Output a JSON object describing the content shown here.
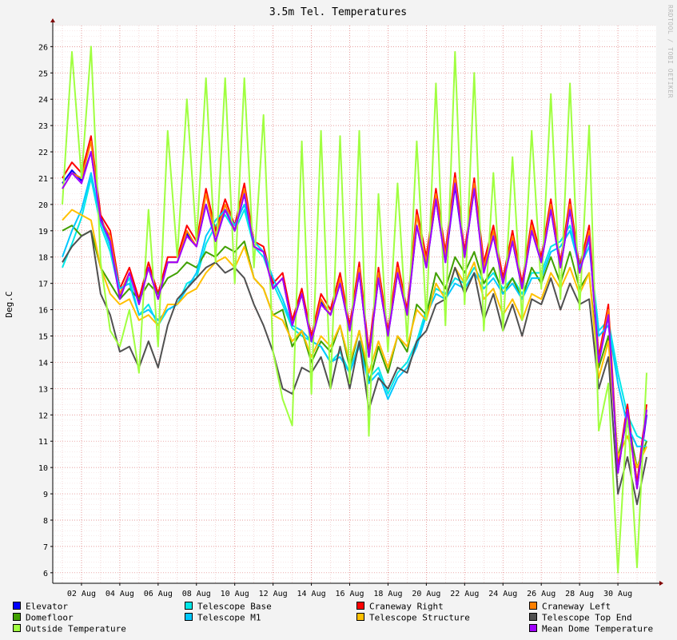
{
  "chart_data": {
    "type": "line",
    "title": "3.5m Tel. Temperatures",
    "ylabel": "Deg.C",
    "xlabel": "",
    "ylim": [
      5.6,
      26.8
    ],
    "yticks": [
      6,
      7,
      8,
      9,
      10,
      11,
      12,
      13,
      14,
      15,
      16,
      17,
      18,
      19,
      20,
      21,
      22,
      23,
      24,
      25,
      26
    ],
    "x_tick_labels": [
      "02 Aug",
      "04 Aug",
      "06 Aug",
      "08 Aug",
      "10 Aug",
      "12 Aug",
      "14 Aug",
      "16 Aug",
      "18 Aug",
      "20 Aug",
      "22 Aug",
      "24 Aug",
      "26 Aug",
      "28 Aug",
      "30 Aug"
    ],
    "x": [
      1.0,
      1.5,
      2.0,
      2.5,
      3.0,
      3.5,
      4.0,
      4.5,
      5.0,
      5.5,
      6.0,
      6.5,
      7.0,
      7.5,
      8.0,
      8.5,
      9.0,
      9.5,
      10.0,
      10.5,
      11.0,
      11.5,
      12.0,
      12.5,
      13.0,
      13.5,
      14.0,
      14.5,
      15.0,
      15.5,
      16.0,
      16.5,
      17.0,
      17.5,
      18.0,
      18.5,
      19.0,
      19.5,
      20.0,
      20.5,
      21.0,
      21.5,
      22.0,
      22.5,
      23.0,
      23.5,
      24.0,
      24.5,
      25.0,
      25.5,
      26.0,
      26.5,
      27.0,
      27.5,
      28.0,
      28.5,
      29.0,
      29.5,
      30.0,
      30.5,
      31.0,
      31.5
    ],
    "grid": true,
    "legend_position": "bottom",
    "series": [
      {
        "name": "Elevator",
        "color": "#0000ff",
        "values": [
          20.8,
          21.3,
          20.9,
          22.0,
          19.5,
          18.6,
          16.5,
          17.4,
          16.3,
          17.6,
          16.4,
          17.8,
          17.8,
          18.9,
          18.4,
          20.0,
          18.6,
          19.8,
          19.0,
          20.4,
          18.4,
          18.2,
          16.8,
          17.2,
          15.4,
          16.6,
          14.8,
          16.3,
          15.8,
          17.0,
          15.2,
          17.4,
          14.2,
          17.2,
          15.0,
          17.4,
          15.8,
          19.2,
          17.6,
          20.2,
          17.8,
          20.7,
          18.0,
          20.6,
          17.5,
          18.8,
          17.0,
          18.6,
          16.8,
          19.0,
          17.8,
          19.8,
          17.6,
          19.8,
          17.4,
          18.8,
          14.0,
          15.8,
          9.8,
          12.2,
          9.2,
          12.0
        ]
      },
      {
        "name": "Telescope Base",
        "color": "#00e8e8",
        "values": [
          17.6,
          18.5,
          19.5,
          21.0,
          19.2,
          18.2,
          16.6,
          17.2,
          15.8,
          16.2,
          15.4,
          16.0,
          16.2,
          17.0,
          17.2,
          18.5,
          19.2,
          19.6,
          19.0,
          19.8,
          18.4,
          18.0,
          17.0,
          16.2,
          15.3,
          15.0,
          14.8,
          14.6,
          14.0,
          14.4,
          13.6,
          14.8,
          13.4,
          13.8,
          12.8,
          13.6,
          14.0,
          14.8,
          16.0,
          16.8,
          16.6,
          17.2,
          17.0,
          17.6,
          17.0,
          17.4,
          16.8,
          17.2,
          16.6,
          17.4,
          17.4,
          18.4,
          18.6,
          19.2,
          17.8,
          18.6,
          15.2,
          15.6,
          13.6,
          12.0,
          11.2,
          11.0
        ]
      },
      {
        "name": "Craneway Right",
        "color": "#ff0000",
        "values": [
          21.0,
          21.6,
          21.2,
          22.6,
          19.6,
          19.0,
          16.8,
          17.6,
          16.4,
          17.8,
          16.6,
          18.0,
          18.0,
          19.2,
          18.6,
          20.6,
          19.0,
          20.2,
          19.2,
          20.8,
          18.6,
          18.4,
          17.0,
          17.4,
          15.6,
          16.8,
          15.0,
          16.6,
          16.0,
          17.4,
          15.4,
          17.8,
          14.4,
          17.6,
          15.2,
          17.8,
          16.0,
          19.8,
          18.0,
          20.6,
          18.2,
          21.2,
          18.2,
          21.0,
          17.8,
          19.2,
          17.2,
          19.0,
          17.0,
          19.4,
          18.0,
          20.2,
          17.8,
          20.2,
          17.6,
          19.2,
          14.2,
          16.2,
          10.0,
          12.4,
          9.4,
          12.4
        ]
      },
      {
        "name": "Craneway Left",
        "color": "#ff8000",
        "values": [
          20.6,
          21.2,
          21.0,
          22.4,
          19.4,
          18.8,
          16.6,
          17.4,
          16.2,
          17.6,
          16.4,
          17.8,
          17.8,
          19.0,
          18.4,
          20.4,
          18.8,
          20.0,
          19.0,
          20.6,
          18.4,
          18.2,
          16.8,
          17.2,
          15.4,
          16.6,
          14.8,
          16.4,
          15.8,
          17.2,
          15.2,
          17.6,
          14.2,
          17.4,
          15.0,
          17.6,
          15.8,
          19.6,
          17.8,
          20.4,
          18.0,
          21.0,
          18.0,
          20.8,
          17.6,
          19.0,
          17.0,
          18.8,
          16.8,
          19.2,
          17.8,
          20.0,
          17.6,
          20.0,
          17.4,
          19.0,
          14.0,
          16.0,
          9.8,
          12.2,
          9.2,
          12.2
        ]
      },
      {
        "name": "Domefloor",
        "color": "#40a000",
        "values": [
          19.0,
          19.2,
          18.8,
          19.0,
          17.6,
          17.0,
          16.4,
          16.8,
          16.4,
          17.0,
          16.6,
          17.2,
          17.4,
          17.8,
          17.6,
          18.2,
          18.0,
          18.4,
          18.2,
          18.6,
          17.2,
          16.8,
          15.8,
          16.0,
          14.6,
          15.2,
          14.0,
          14.8,
          14.4,
          15.4,
          13.8,
          15.2,
          13.2,
          14.6,
          13.6,
          15.0,
          14.4,
          16.2,
          15.8,
          17.4,
          16.8,
          18.0,
          17.4,
          18.2,
          17.0,
          17.6,
          16.6,
          17.2,
          16.4,
          17.6,
          17.0,
          18.0,
          17.0,
          18.2,
          16.8,
          17.4,
          13.8,
          15.0,
          10.4,
          11.8,
          10.0,
          11.0
        ]
      },
      {
        "name": "Telescope M1",
        "color": "#00c8ff",
        "values": [
          18.0,
          19.0,
          19.8,
          21.2,
          19.4,
          18.4,
          16.8,
          17.0,
          15.8,
          16.0,
          15.6,
          16.0,
          16.2,
          16.8,
          17.4,
          18.8,
          19.4,
          19.8,
          19.2,
          20.0,
          18.6,
          18.2,
          17.2,
          16.4,
          15.4,
          15.2,
          14.8,
          14.6,
          14.0,
          14.2,
          13.6,
          14.6,
          13.2,
          13.6,
          12.6,
          13.4,
          13.8,
          14.6,
          15.8,
          16.6,
          16.4,
          17.0,
          16.8,
          17.4,
          16.8,
          17.2,
          16.6,
          17.0,
          16.4,
          17.2,
          17.2,
          18.2,
          18.4,
          19.0,
          17.6,
          18.4,
          15.0,
          15.4,
          13.2,
          11.6,
          10.8,
          10.8
        ]
      },
      {
        "name": "Telescope Structure",
        "color": "#ffc000",
        "values": [
          19.4,
          19.8,
          19.6,
          19.4,
          17.6,
          16.6,
          16.2,
          16.4,
          15.6,
          15.8,
          15.4,
          16.2,
          16.2,
          16.6,
          16.8,
          17.4,
          17.8,
          18.0,
          17.6,
          18.4,
          17.2,
          16.8,
          15.8,
          15.6,
          14.8,
          15.2,
          14.2,
          15.0,
          14.6,
          15.4,
          14.0,
          15.2,
          13.6,
          14.8,
          13.8,
          15.0,
          14.6,
          16.0,
          15.6,
          17.0,
          16.4,
          17.6,
          17.0,
          17.8,
          16.4,
          16.8,
          15.8,
          16.4,
          15.6,
          16.6,
          16.4,
          17.4,
          16.8,
          17.6,
          16.6,
          17.4,
          13.4,
          14.8,
          10.4,
          11.2,
          10.0,
          10.8
        ]
      },
      {
        "name": "Telescope Top End",
        "color": "#505050",
        "values": [
          17.8,
          18.4,
          18.8,
          19.0,
          16.6,
          15.8,
          14.4,
          14.6,
          13.8,
          14.8,
          13.8,
          15.4,
          16.4,
          16.8,
          17.2,
          17.6,
          17.8,
          17.4,
          17.6,
          17.2,
          16.2,
          15.4,
          14.4,
          13.0,
          12.8,
          13.8,
          13.6,
          14.2,
          13.0,
          14.6,
          13.0,
          14.8,
          12.2,
          13.4,
          13.0,
          13.8,
          13.6,
          14.8,
          15.2,
          16.2,
          16.4,
          17.6,
          16.6,
          17.4,
          15.6,
          16.6,
          15.2,
          16.2,
          15.0,
          16.4,
          16.2,
          17.2,
          16.0,
          17.0,
          16.2,
          16.4,
          13.0,
          14.2,
          9.0,
          10.4,
          8.6,
          10.4
        ]
      },
      {
        "name": "Outside Temperature",
        "color": "#a0ff40",
        "values": [
          20.0,
          25.8,
          21.0,
          26.0,
          17.8,
          15.2,
          14.6,
          16.0,
          13.6,
          19.8,
          14.6,
          22.8,
          18.0,
          24.0,
          18.6,
          24.8,
          17.8,
          24.8,
          17.0,
          24.8,
          17.6,
          23.4,
          14.4,
          12.6,
          11.6,
          22.4,
          12.8,
          22.8,
          13.0,
          22.6,
          13.2,
          22.8,
          11.2,
          20.4,
          14.4,
          20.8,
          14.8,
          22.4,
          15.6,
          24.6,
          15.4,
          25.8,
          16.2,
          25.0,
          15.2,
          21.2,
          15.2,
          21.8,
          15.6,
          22.8,
          16.8,
          24.2,
          16.4,
          24.6,
          16.0,
          23.0,
          11.4,
          13.2,
          6.0,
          12.2,
          6.2,
          13.6
        ]
      },
      {
        "name": "Mean Dome Temperature",
        "color": "#a000ff",
        "values": [
          20.6,
          21.2,
          20.8,
          22.0,
          19.4,
          18.6,
          16.4,
          17.4,
          16.2,
          17.6,
          16.4,
          17.8,
          17.8,
          18.8,
          18.4,
          20.0,
          18.6,
          19.8,
          19.0,
          20.4,
          18.4,
          18.2,
          16.8,
          17.2,
          15.4,
          16.6,
          14.8,
          16.2,
          15.8,
          17.0,
          15.2,
          17.4,
          14.2,
          17.2,
          15.0,
          17.4,
          15.8,
          19.2,
          17.6,
          20.2,
          17.8,
          20.8,
          18.0,
          20.6,
          17.4,
          18.8,
          17.0,
          18.6,
          16.8,
          19.0,
          17.8,
          19.8,
          17.6,
          19.8,
          17.4,
          18.8,
          14.0,
          15.8,
          9.8,
          12.2,
          9.2,
          12.2
        ]
      }
    ]
  },
  "credit": "RRDTOOL / TOBI OETIKER"
}
